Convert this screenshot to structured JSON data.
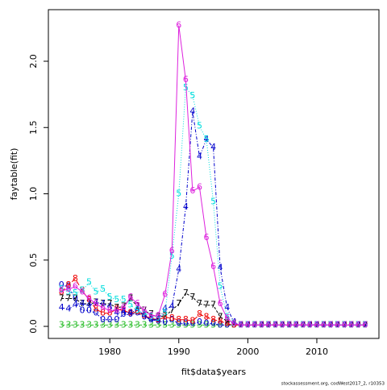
{
  "chart_data": {
    "type": "matplot",
    "x_label": "fit$data$years",
    "y_label": "faytable(fit)",
    "footer": "stockassessment.org, codWest2017_2, r10353",
    "x": [
      1973,
      1974,
      1975,
      1976,
      1977,
      1978,
      1979,
      1980,
      1981,
      1982,
      1983,
      1984,
      1985,
      1986,
      1987,
      1988,
      1989,
      1990,
      1991,
      1992,
      1993,
      1994,
      1995,
      1996,
      1997,
      1998,
      1999,
      2000,
      2001,
      2002,
      2003,
      2004,
      2005,
      2006,
      2007,
      2008,
      2009,
      2010,
      2011,
      2012,
      2013,
      2014,
      2015,
      2016,
      2017
    ],
    "xlim": [
      1971.1,
      2019
    ],
    "ylim": [
      -0.091,
      2.389
    ],
    "xticks": [
      1980,
      1990,
      2000,
      2010
    ],
    "yticks": [
      {
        "value": 0,
        "label": "0.0"
      },
      {
        "value": 0.5,
        "label": "0.5"
      },
      {
        "value": 1,
        "label": "1.0"
      },
      {
        "value": 1.5,
        "label": "1.5"
      },
      {
        "value": 2,
        "label": "2.0"
      }
    ],
    "series": [
      {
        "name": "3",
        "color": "#22bb22",
        "values": [
          0.01,
          0.01,
          0.01,
          0.01,
          0.01,
          0.01,
          0.01,
          0.01,
          0.01,
          0.01,
          0.01,
          0.01,
          0.01,
          0.01,
          0.01,
          0.01,
          0.01,
          0.01,
          0.01,
          0.01,
          0.01,
          0.01,
          0.01,
          0.01,
          0.01,
          0.01,
          0.01,
          0.01,
          0.01,
          0.01,
          0.01,
          0.01,
          0.01,
          0.01,
          0.01,
          0.01,
          0.01,
          0.01,
          0.01,
          0.01,
          0.01,
          0.01,
          0.01,
          0.01,
          0.01
        ]
      },
      {
        "name": "0",
        "color": "#0000cc",
        "values": [
          0.31,
          0.3,
          0.21,
          0.12,
          0.12,
          0.1,
          0.05,
          0.05,
          0.05,
          0.09,
          0.09,
          0.1,
          0.07,
          0.05,
          0.04,
          0.03,
          0.05,
          0.02,
          0.02,
          0.02,
          0.03,
          0.02,
          0.02,
          0.01,
          0.01,
          0.01,
          0.01,
          0.01,
          0.01,
          0.01,
          0.01,
          0.01,
          0.01,
          0.01,
          0.01,
          0.01,
          0.01,
          0.01,
          0.01,
          0.01,
          0.01,
          0.01,
          0.01,
          0.01,
          0.01
        ]
      },
      {
        "name": "8",
        "color": "#ee0000",
        "values": [
          0.26,
          0.31,
          0.36,
          0.27,
          0.2,
          0.13,
          0.1,
          0.1,
          0.13,
          0.12,
          0.1,
          0.11,
          0.08,
          0.06,
          0.05,
          0.07,
          0.06,
          0.05,
          0.05,
          0.04,
          0.09,
          0.07,
          0.05,
          0.04,
          0.02,
          0.01,
          0.01,
          0.01,
          0.01,
          0.01,
          0.01,
          0.01,
          0.01,
          0.01,
          0.01,
          0.01,
          0.01,
          0.01,
          0.01,
          0.01,
          0.01,
          0.01,
          0.01,
          0.01,
          0.01
        ]
      },
      {
        "name": "7",
        "color": "#000000",
        "values": [
          0.21,
          0.21,
          0.21,
          0.17,
          0.17,
          0.18,
          0.17,
          0.17,
          0.14,
          0.15,
          0.21,
          0.15,
          0.12,
          0.09,
          0.07,
          0.08,
          0.12,
          0.17,
          0.25,
          0.22,
          0.17,
          0.16,
          0.16,
          0.07,
          0.04,
          0.02,
          0.01,
          0.01,
          0.01,
          0.01,
          0.01,
          0.01,
          0.01,
          0.01,
          0.01,
          0.01,
          0.01,
          0.01,
          0.01,
          0.01,
          0.01,
          0.01,
          0.01,
          0.01,
          0.01
        ]
      },
      {
        "name": "4",
        "color": "#0000cc",
        "values": [
          0.14,
          0.13,
          0.16,
          0.17,
          0.16,
          0.18,
          0.17,
          0.15,
          0.1,
          0.11,
          0.1,
          0.13,
          0.08,
          0.05,
          0.05,
          0.13,
          0.15,
          0.43,
          0.9,
          1.62,
          1.28,
          1.41,
          1.35,
          0.44,
          0.14,
          0.03,
          0.01,
          0.01,
          0.01,
          0.01,
          0.01,
          0.01,
          0.01,
          0.01,
          0.01,
          0.01,
          0.01,
          0.01,
          0.01,
          0.01,
          0.01,
          0.01,
          0.01,
          0.01,
          0.01
        ]
      },
      {
        "name": "5",
        "color": "#00dddd",
        "values": [
          0.28,
          0.26,
          0.25,
          0.27,
          0.33,
          0.26,
          0.28,
          0.22,
          0.2,
          0.2,
          0.16,
          0.12,
          0.1,
          0.07,
          0.06,
          0.1,
          0.53,
          1.0,
          1.8,
          1.74,
          1.51,
          1.41,
          0.94,
          0.3,
          0.07,
          0.02,
          0.01,
          0.01,
          0.01,
          0.01,
          0.01,
          0.01,
          0.01,
          0.01,
          0.01,
          0.01,
          0.01,
          0.01,
          0.01,
          0.01,
          0.01,
          0.01,
          0.01,
          0.01,
          0.01
        ]
      },
      {
        "name": "6",
        "color": "#dd22dd",
        "values": [
          0.27,
          0.28,
          0.3,
          0.26,
          0.21,
          0.17,
          0.14,
          0.12,
          0.12,
          0.14,
          0.22,
          0.17,
          0.12,
          0.08,
          0.08,
          0.24,
          0.57,
          2.27,
          1.86,
          1.02,
          1.05,
          0.67,
          0.45,
          0.17,
          0.06,
          0.02,
          0.01,
          0.01,
          0.01,
          0.01,
          0.01,
          0.01,
          0.01,
          0.01,
          0.01,
          0.01,
          0.01,
          0.01,
          0.01,
          0.01,
          0.01,
          0.01,
          0.01,
          0.01,
          0.01
        ]
      }
    ]
  }
}
